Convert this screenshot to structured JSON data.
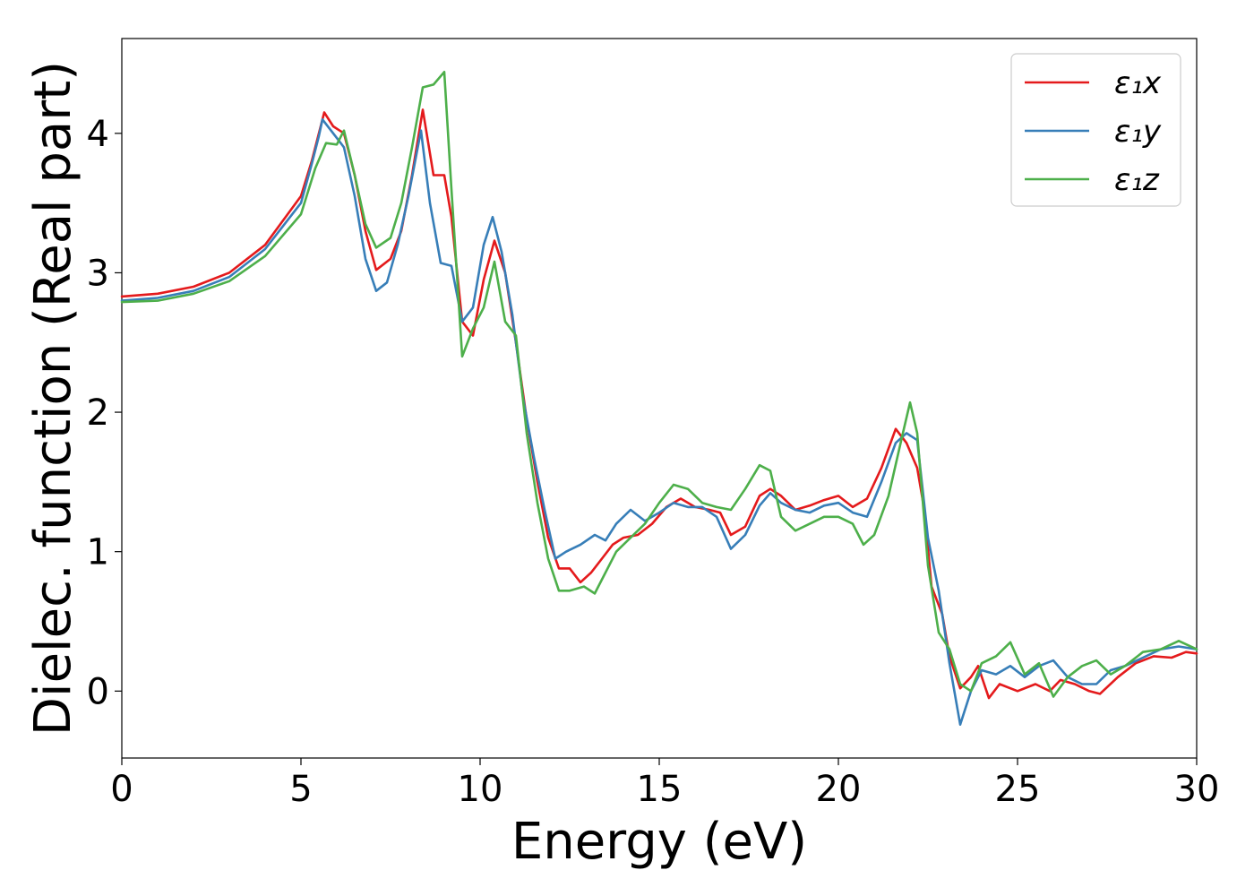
{
  "chart_data": {
    "type": "line",
    "title": "",
    "xlabel": "Energy (eV)",
    "ylabel": "Dielec. function (Real part)",
    "xlim": [
      0,
      30
    ],
    "ylim": [
      -0.48,
      4.68
    ],
    "xticks": [
      0,
      5,
      10,
      15,
      20,
      25,
      30
    ],
    "xtick_labels": [
      "0",
      "5",
      "10",
      "15",
      "20",
      "25",
      "30"
    ],
    "yticks": [
      0,
      1,
      2,
      3,
      4
    ],
    "ytick_labels": [
      "0",
      "1",
      "2",
      "3",
      "4"
    ],
    "grid": false,
    "legend_position": "top-right",
    "series": [
      {
        "name": "ε₁x",
        "color": "#e41a1c",
        "points": [
          [
            0,
            2.83
          ],
          [
            1,
            2.85
          ],
          [
            2,
            2.9
          ],
          [
            3,
            3.0
          ],
          [
            4,
            3.2
          ],
          [
            5,
            3.55
          ],
          [
            5.3,
            3.8
          ],
          [
            5.5,
            4.0
          ],
          [
            5.65,
            4.15
          ],
          [
            5.9,
            4.05
          ],
          [
            6.2,
            4.0
          ],
          [
            6.5,
            3.7
          ],
          [
            6.8,
            3.3
          ],
          [
            7.1,
            3.02
          ],
          [
            7.5,
            3.1
          ],
          [
            7.8,
            3.3
          ],
          [
            8.1,
            3.7
          ],
          [
            8.4,
            4.17
          ],
          [
            8.7,
            3.7
          ],
          [
            9.0,
            3.7
          ],
          [
            9.2,
            3.4
          ],
          [
            9.5,
            2.65
          ],
          [
            9.8,
            2.55
          ],
          [
            10.1,
            2.95
          ],
          [
            10.4,
            3.23
          ],
          [
            10.7,
            3.0
          ],
          [
            11.0,
            2.5
          ],
          [
            11.3,
            1.95
          ],
          [
            11.6,
            1.5
          ],
          [
            11.9,
            1.1
          ],
          [
            12.2,
            0.88
          ],
          [
            12.5,
            0.88
          ],
          [
            12.8,
            0.78
          ],
          [
            13.1,
            0.85
          ],
          [
            13.4,
            0.95
          ],
          [
            13.7,
            1.05
          ],
          [
            14.0,
            1.1
          ],
          [
            14.4,
            1.12
          ],
          [
            14.8,
            1.2
          ],
          [
            15.2,
            1.32
          ],
          [
            15.6,
            1.38
          ],
          [
            16.0,
            1.32
          ],
          [
            16.4,
            1.3
          ],
          [
            16.7,
            1.28
          ],
          [
            17.0,
            1.12
          ],
          [
            17.4,
            1.18
          ],
          [
            17.8,
            1.4
          ],
          [
            18.1,
            1.45
          ],
          [
            18.4,
            1.4
          ],
          [
            18.8,
            1.3
          ],
          [
            19.2,
            1.33
          ],
          [
            19.6,
            1.37
          ],
          [
            20.0,
            1.4
          ],
          [
            20.4,
            1.32
          ],
          [
            20.8,
            1.38
          ],
          [
            21.2,
            1.6
          ],
          [
            21.6,
            1.88
          ],
          [
            21.9,
            1.78
          ],
          [
            22.2,
            1.6
          ],
          [
            22.4,
            1.3
          ],
          [
            22.6,
            0.75
          ],
          [
            22.9,
            0.55
          ],
          [
            23.1,
            0.25
          ],
          [
            23.4,
            0.02
          ],
          [
            23.7,
            0.1
          ],
          [
            23.9,
            0.18
          ],
          [
            24.2,
            -0.05
          ],
          [
            24.5,
            0.05
          ],
          [
            25.0,
            0.0
          ],
          [
            25.5,
            0.05
          ],
          [
            25.9,
            0.0
          ],
          [
            26.2,
            0.08
          ],
          [
            26.6,
            0.05
          ],
          [
            27.0,
            0.0
          ],
          [
            27.3,
            -0.02
          ],
          [
            27.8,
            0.1
          ],
          [
            28.3,
            0.2
          ],
          [
            28.8,
            0.25
          ],
          [
            29.3,
            0.24
          ],
          [
            29.7,
            0.28
          ],
          [
            30,
            0.27
          ]
        ]
      },
      {
        "name": "ε₁y",
        "color": "#377eb8",
        "points": [
          [
            0,
            2.8
          ],
          [
            1,
            2.82
          ],
          [
            2,
            2.87
          ],
          [
            3,
            2.97
          ],
          [
            4,
            3.17
          ],
          [
            5,
            3.5
          ],
          [
            5.3,
            3.78
          ],
          [
            5.5,
            3.98
          ],
          [
            5.6,
            4.1
          ],
          [
            5.9,
            4.0
          ],
          [
            6.2,
            3.9
          ],
          [
            6.5,
            3.55
          ],
          [
            6.8,
            3.1
          ],
          [
            7.1,
            2.87
          ],
          [
            7.4,
            2.93
          ],
          [
            7.7,
            3.2
          ],
          [
            8.0,
            3.55
          ],
          [
            8.35,
            4.02
          ],
          [
            8.6,
            3.5
          ],
          [
            8.9,
            3.07
          ],
          [
            9.2,
            3.05
          ],
          [
            9.5,
            2.65
          ],
          [
            9.8,
            2.75
          ],
          [
            10.1,
            3.2
          ],
          [
            10.35,
            3.4
          ],
          [
            10.6,
            3.15
          ],
          [
            10.9,
            2.7
          ],
          [
            11.2,
            2.1
          ],
          [
            11.5,
            1.68
          ],
          [
            11.8,
            1.3
          ],
          [
            12.1,
            0.95
          ],
          [
            12.4,
            1.0
          ],
          [
            12.8,
            1.05
          ],
          [
            13.2,
            1.12
          ],
          [
            13.5,
            1.08
          ],
          [
            13.8,
            1.2
          ],
          [
            14.2,
            1.3
          ],
          [
            14.6,
            1.22
          ],
          [
            15.0,
            1.28
          ],
          [
            15.4,
            1.35
          ],
          [
            15.8,
            1.32
          ],
          [
            16.2,
            1.32
          ],
          [
            16.6,
            1.25
          ],
          [
            17.0,
            1.02
          ],
          [
            17.4,
            1.12
          ],
          [
            17.8,
            1.33
          ],
          [
            18.1,
            1.42
          ],
          [
            18.4,
            1.35
          ],
          [
            18.8,
            1.3
          ],
          [
            19.2,
            1.28
          ],
          [
            19.6,
            1.33
          ],
          [
            20.0,
            1.35
          ],
          [
            20.4,
            1.28
          ],
          [
            20.8,
            1.25
          ],
          [
            21.2,
            1.5
          ],
          [
            21.6,
            1.78
          ],
          [
            21.9,
            1.85
          ],
          [
            22.2,
            1.8
          ],
          [
            22.5,
            1.1
          ],
          [
            22.8,
            0.72
          ],
          [
            23.1,
            0.2
          ],
          [
            23.4,
            -0.24
          ],
          [
            23.7,
            0.0
          ],
          [
            24.0,
            0.15
          ],
          [
            24.4,
            0.12
          ],
          [
            24.8,
            0.18
          ],
          [
            25.2,
            0.1
          ],
          [
            25.6,
            0.18
          ],
          [
            26.0,
            0.22
          ],
          [
            26.4,
            0.1
          ],
          [
            26.8,
            0.05
          ],
          [
            27.2,
            0.05
          ],
          [
            27.6,
            0.15
          ],
          [
            28.0,
            0.18
          ],
          [
            28.5,
            0.24
          ],
          [
            29.0,
            0.3
          ],
          [
            29.5,
            0.32
          ],
          [
            30,
            0.3
          ]
        ]
      },
      {
        "name": "ε₁z",
        "color": "#4daf4a",
        "points": [
          [
            0,
            2.79
          ],
          [
            1,
            2.8
          ],
          [
            2,
            2.85
          ],
          [
            3,
            2.94
          ],
          [
            4,
            3.12
          ],
          [
            5,
            3.42
          ],
          [
            5.4,
            3.75
          ],
          [
            5.7,
            3.93
          ],
          [
            6.0,
            3.92
          ],
          [
            6.2,
            4.02
          ],
          [
            6.5,
            3.7
          ],
          [
            6.8,
            3.35
          ],
          [
            7.1,
            3.18
          ],
          [
            7.5,
            3.25
          ],
          [
            7.8,
            3.5
          ],
          [
            8.1,
            3.9
          ],
          [
            8.4,
            4.33
          ],
          [
            8.7,
            4.35
          ],
          [
            9.0,
            4.44
          ],
          [
            9.2,
            3.6
          ],
          [
            9.5,
            2.4
          ],
          [
            9.8,
            2.6
          ],
          [
            10.1,
            2.75
          ],
          [
            10.4,
            3.08
          ],
          [
            10.7,
            2.65
          ],
          [
            11.0,
            2.55
          ],
          [
            11.3,
            1.85
          ],
          [
            11.6,
            1.35
          ],
          [
            11.9,
            0.95
          ],
          [
            12.2,
            0.72
          ],
          [
            12.5,
            0.72
          ],
          [
            12.9,
            0.75
          ],
          [
            13.2,
            0.7
          ],
          [
            13.5,
            0.85
          ],
          [
            13.8,
            1.0
          ],
          [
            14.2,
            1.1
          ],
          [
            14.6,
            1.2
          ],
          [
            15.0,
            1.35
          ],
          [
            15.4,
            1.48
          ],
          [
            15.8,
            1.45
          ],
          [
            16.2,
            1.35
          ],
          [
            16.6,
            1.32
          ],
          [
            17.0,
            1.3
          ],
          [
            17.4,
            1.45
          ],
          [
            17.8,
            1.62
          ],
          [
            18.1,
            1.58
          ],
          [
            18.4,
            1.25
          ],
          [
            18.8,
            1.15
          ],
          [
            19.2,
            1.2
          ],
          [
            19.6,
            1.25
          ],
          [
            20.0,
            1.25
          ],
          [
            20.4,
            1.2
          ],
          [
            20.7,
            1.05
          ],
          [
            21.0,
            1.12
          ],
          [
            21.4,
            1.4
          ],
          [
            21.8,
            1.85
          ],
          [
            22.0,
            2.07
          ],
          [
            22.2,
            1.85
          ],
          [
            22.5,
            0.9
          ],
          [
            22.8,
            0.42
          ],
          [
            23.1,
            0.3
          ],
          [
            23.4,
            0.05
          ],
          [
            23.7,
            0.0
          ],
          [
            24.0,
            0.2
          ],
          [
            24.4,
            0.25
          ],
          [
            24.8,
            0.35
          ],
          [
            25.2,
            0.12
          ],
          [
            25.6,
            0.2
          ],
          [
            26.0,
            -0.04
          ],
          [
            26.4,
            0.1
          ],
          [
            26.8,
            0.18
          ],
          [
            27.2,
            0.22
          ],
          [
            27.6,
            0.12
          ],
          [
            28.0,
            0.18
          ],
          [
            28.5,
            0.28
          ],
          [
            29.0,
            0.3
          ],
          [
            29.5,
            0.36
          ],
          [
            30,
            0.3
          ]
        ]
      }
    ]
  }
}
